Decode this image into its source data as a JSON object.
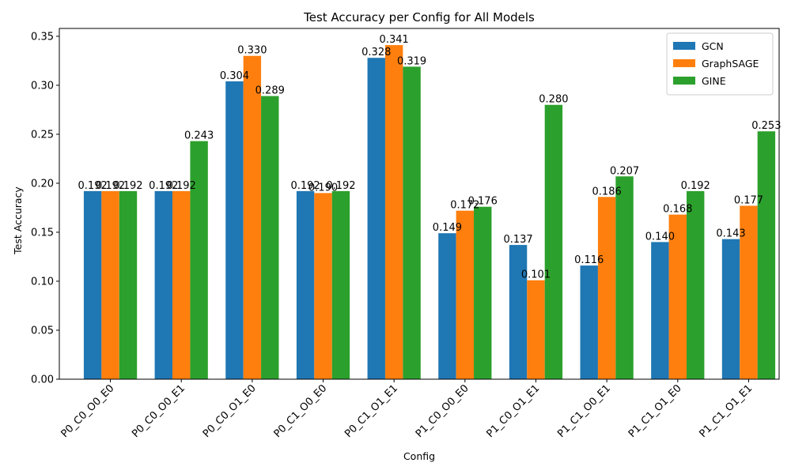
{
  "chart_data": {
    "type": "bar",
    "title": "Test Accuracy per Config for All Models",
    "xlabel": "Config",
    "ylabel": "Test Accuracy",
    "ylim": [
      0,
      0.358
    ],
    "yticks": [
      "0.00",
      "0.05",
      "0.10",
      "0.15",
      "0.20",
      "0.25",
      "0.30",
      "0.35"
    ],
    "grid": false,
    "legend_position": "top-right",
    "categories": [
      "P0_C0_O0_E0",
      "P0_C0_O0_E1",
      "P0_C0_O1_E0",
      "P0_C1_O0_E0",
      "P0_C1_O1_E1",
      "P1_C0_O0_E0",
      "P1_C0_O1_E1",
      "P1_C1_O0_E1",
      "P1_C1_O1_E0",
      "P1_C1_O1_E1"
    ],
    "series": [
      {
        "name": "GCN",
        "color": "#1f77b4",
        "values": [
          0.192,
          0.192,
          0.304,
          0.192,
          0.328,
          0.149,
          0.137,
          0.116,
          0.14,
          0.143
        ],
        "labels": [
          "0.192",
          "0.192",
          "0.304",
          "0.192",
          "0.328",
          "0.149",
          "0.137",
          "0.116",
          "0.140",
          "0.143"
        ]
      },
      {
        "name": "GraphSAGE",
        "color": "#ff7f0e",
        "values": [
          0.192,
          0.192,
          0.33,
          0.19,
          0.341,
          0.172,
          0.101,
          0.186,
          0.168,
          0.177
        ],
        "labels": [
          "0.192",
          "0.192",
          "0.330",
          "0.190",
          "0.341",
          "0.172",
          "0.101",
          "0.186",
          "0.168",
          "0.177"
        ]
      },
      {
        "name": "GINE",
        "color": "#2ca02c",
        "values": [
          0.192,
          0.243,
          0.289,
          0.192,
          0.319,
          0.176,
          0.28,
          0.207,
          0.192,
          0.253
        ],
        "labels": [
          "0.192",
          "0.243",
          "0.289",
          "0.192",
          "0.319",
          "0.176",
          "0.280",
          "0.207",
          "0.192",
          "0.253"
        ]
      }
    ]
  }
}
